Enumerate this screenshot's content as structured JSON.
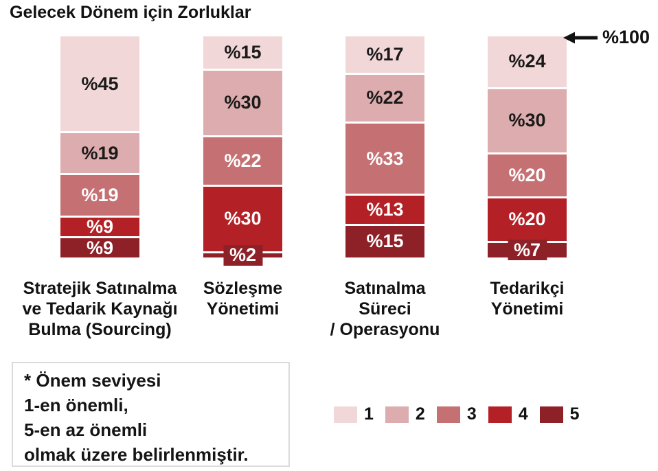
{
  "chart_data": {
    "type": "bar",
    "stacked": true,
    "orientation": "vertical",
    "title": "Gelecek Dönem için Zorluklar",
    "value_prefix": "%",
    "ylim": [
      0,
      100
    ],
    "grid": false,
    "legend_position": "bottom-right",
    "total_annotation": "%100",
    "categories": [
      "Stratejik Satınalma\nve Tedarik Kaynağı\nBulma (Sourcing)",
      "Sözleşme\nYönetimi",
      "Satınalma\nSüreci\n/ Operasyonu",
      "Tedarikçi\nYönetimi"
    ],
    "series": [
      {
        "name": "1",
        "color": "#F2D7D8",
        "label_color": "#1a1a1a",
        "values": [
          45,
          15,
          17,
          24
        ]
      },
      {
        "name": "2",
        "color": "#DDACAE",
        "label_color": "#1a1a1a",
        "values": [
          19,
          30,
          22,
          30
        ]
      },
      {
        "name": "3",
        "color": "#C57072",
        "label_color": "#ffffff",
        "values": [
          19,
          22,
          33,
          20
        ]
      },
      {
        "name": "4",
        "color": "#B32025",
        "label_color": "#ffffff",
        "values": [
          9,
          30,
          13,
          20
        ]
      },
      {
        "name": "5",
        "color": "#8E2027",
        "label_color": "#ffffff",
        "values": [
          9,
          2,
          15,
          7
        ]
      }
    ],
    "note": "* Önem seviyesi\n1-en önemli,\n5-en az önemli\nolmak üzere belirlenmiştir."
  }
}
